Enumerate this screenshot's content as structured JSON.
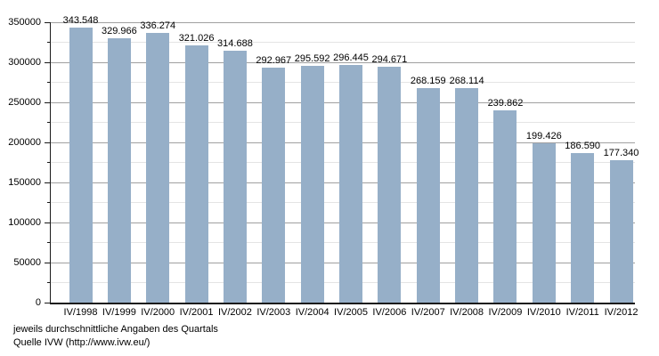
{
  "chart_data": {
    "type": "bar",
    "title": "",
    "xlabel": "",
    "ylabel": "",
    "categories": [
      "IV/1998",
      "IV/1999",
      "IV/2000",
      "IV/2001",
      "IV/2002",
      "IV/2003",
      "IV/2004",
      "IV/2005",
      "IV/2006",
      "IV/2007",
      "IV/2008",
      "IV/2009",
      "IV/2010",
      "IV/2011",
      "IV/2012"
    ],
    "values": [
      343548,
      329966,
      336274,
      321026,
      314688,
      292967,
      295592,
      296445,
      294671,
      268159,
      268114,
      239862,
      199426,
      186590,
      177340
    ],
    "value_labels": [
      "343.548",
      "329.966",
      "336.274",
      "321.026",
      "314.688",
      "292.967",
      "295.592",
      "296.445",
      "294.671",
      "268.159",
      "268.114",
      "239.862",
      "199.426",
      "186.590",
      "177.340"
    ],
    "ylim": [
      0,
      350000
    ],
    "y_major_step": 50000,
    "y_minor_step": 25000,
    "y_tick_labels": [
      "0",
      "50000",
      "100000",
      "150000",
      "200000",
      "250000",
      "300000",
      "350000"
    ],
    "grid": true,
    "legend": false,
    "bar_color": "#96AFC8",
    "major_grid_color": "#a0a0a0",
    "minor_grid_color": "#e4e4e4",
    "axis_color": "#1a1a1a",
    "text_color": "#000000"
  },
  "footer": {
    "line1": "jeweils durchschnittliche Angaben des Quartals",
    "line2": "Quelle IVW (http://www.ivw.eu/)"
  }
}
